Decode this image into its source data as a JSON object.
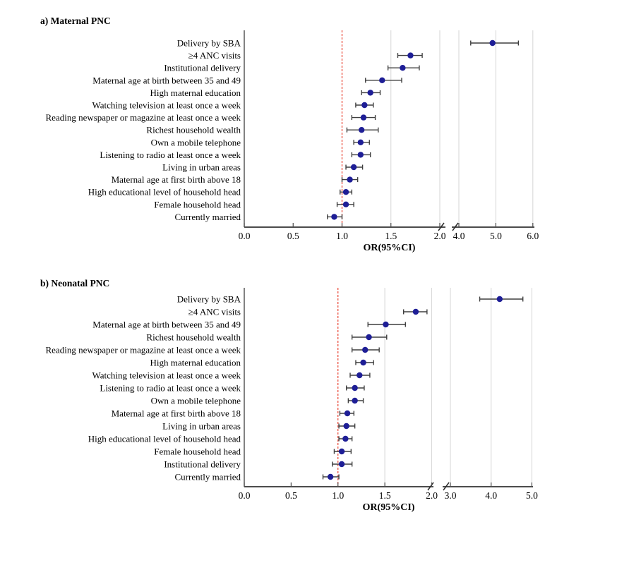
{
  "figure": {
    "panel_a_title": "a) Maternal PNC",
    "panel_b_title": "b) Neonatal PNC"
  },
  "colors": {
    "marker": "#1e1e96",
    "error_bar": "#3f3f3f",
    "gridline": "#d9d9d9",
    "axis": "#4c4c4c",
    "reference_line": "#e8402f",
    "text": "#000000",
    "background": "#ffffff"
  },
  "chart_data": [
    {
      "type": "scatter",
      "subtype": "forest-plot",
      "title": "a) Maternal PNC",
      "xlabel": "OR(95%CI)",
      "reference_line_x": 1.0,
      "axis_break": true,
      "segment1_range": [
        0.0,
        2.0
      ],
      "segment2_range": [
        4.0,
        6.0
      ],
      "segment1_ticks": [
        "0.0",
        "0.5",
        "1.0",
        "1.5",
        "2.0"
      ],
      "segment2_ticks": [
        "4.0",
        "5.0",
        "6.0"
      ],
      "gridline_values": [
        1.5,
        2.0,
        4.0,
        5.0,
        6.0
      ],
      "rows": [
        {
          "label": "Delivery by SBA",
          "or": 4.91,
          "ci_low": 4.32,
          "ci_high": 5.61
        },
        {
          "label": "≥4 ANC visits",
          "or": 1.7,
          "ci_low": 1.57,
          "ci_high": 1.82
        },
        {
          "label": "Institutional delivery",
          "or": 1.62,
          "ci_low": 1.47,
          "ci_high": 1.79
        },
        {
          "label": "Maternal age at birth between 35 and 49",
          "or": 1.41,
          "ci_low": 1.24,
          "ci_high": 1.61
        },
        {
          "label": "High maternal education",
          "or": 1.29,
          "ci_low": 1.2,
          "ci_high": 1.39
        },
        {
          "label": "Watching television at least once a week",
          "or": 1.23,
          "ci_low": 1.14,
          "ci_high": 1.32
        },
        {
          "label": "Reading newspaper or magazine at least once a week",
          "or": 1.22,
          "ci_low": 1.1,
          "ci_high": 1.34
        },
        {
          "label": "Richest household wealth",
          "or": 1.2,
          "ci_low": 1.05,
          "ci_high": 1.37
        },
        {
          "label": "Own a mobile telephone",
          "or": 1.19,
          "ci_low": 1.12,
          "ci_high": 1.28
        },
        {
          "label": "Listening to radio at least once a week",
          "or": 1.19,
          "ci_low": 1.1,
          "ci_high": 1.29
        },
        {
          "label": "Living in urban areas",
          "or": 1.12,
          "ci_low": 1.04,
          "ci_high": 1.21
        },
        {
          "label": "Maternal age at first birth above 18",
          "or": 1.08,
          "ci_low": 1.0,
          "ci_high": 1.16
        },
        {
          "label": "High educational level of household head",
          "or": 1.04,
          "ci_low": 0.98,
          "ci_high": 1.1
        },
        {
          "label": "Female household head",
          "or": 1.04,
          "ci_low": 0.95,
          "ci_high": 1.12
        },
        {
          "label": "Currently married",
          "or": 0.92,
          "ci_low": 0.85,
          "ci_high": 1.0
        }
      ]
    },
    {
      "type": "scatter",
      "subtype": "forest-plot",
      "title": "b) Neonatal PNC",
      "xlabel": "OR(95%CI)",
      "reference_line_x": 1.0,
      "axis_break": true,
      "segment1_range": [
        0.0,
        2.0
      ],
      "segment2_range": [
        3.0,
        5.0
      ],
      "segment1_ticks": [
        "0.0",
        "0.5",
        "1.0",
        "1.5",
        "2.0"
      ],
      "segment2_ticks": [
        "3.0",
        "4.0",
        "5.0"
      ],
      "gridline_values": [
        1.5,
        2.0,
        3.0,
        4.0,
        5.0
      ],
      "rows": [
        {
          "label": "Delivery by SBA",
          "or": 4.21,
          "ci_low": 3.72,
          "ci_high": 4.78
        },
        {
          "label": "≥4 ANC visits",
          "or": 1.83,
          "ci_low": 1.7,
          "ci_high": 1.95
        },
        {
          "label": "Maternal age at birth between 35 and 49",
          "or": 1.51,
          "ci_low": 1.32,
          "ci_high": 1.72
        },
        {
          "label": "Richest household wealth",
          "or": 1.33,
          "ci_low": 1.15,
          "ci_high": 1.52
        },
        {
          "label": "Reading newspaper or magazine at least once a week",
          "or": 1.29,
          "ci_low": 1.15,
          "ci_high": 1.44
        },
        {
          "label": "High maternal education",
          "or": 1.27,
          "ci_low": 1.19,
          "ci_high": 1.38
        },
        {
          "label": "Watching television at least once a week",
          "or": 1.23,
          "ci_low": 1.13,
          "ci_high": 1.34
        },
        {
          "label": "Listening to radio at least once a week",
          "or": 1.18,
          "ci_low": 1.09,
          "ci_high": 1.28
        },
        {
          "label": "Own a mobile telephone",
          "or": 1.18,
          "ci_low": 1.11,
          "ci_high": 1.27
        },
        {
          "label": "Maternal age at first birth above 18",
          "or": 1.1,
          "ci_low": 1.02,
          "ci_high": 1.17
        },
        {
          "label": "Living in urban areas",
          "or": 1.09,
          "ci_low": 1.01,
          "ci_high": 1.18
        },
        {
          "label": "High educational level of household head",
          "or": 1.08,
          "ci_low": 1.01,
          "ci_high": 1.15
        },
        {
          "label": "Female household head",
          "or": 1.04,
          "ci_low": 0.96,
          "ci_high": 1.14
        },
        {
          "label": "Institutional delivery",
          "or": 1.04,
          "ci_low": 0.94,
          "ci_high": 1.15
        },
        {
          "label": "Currently married",
          "or": 0.92,
          "ci_low": 0.84,
          "ci_high": 1.01
        }
      ]
    }
  ]
}
